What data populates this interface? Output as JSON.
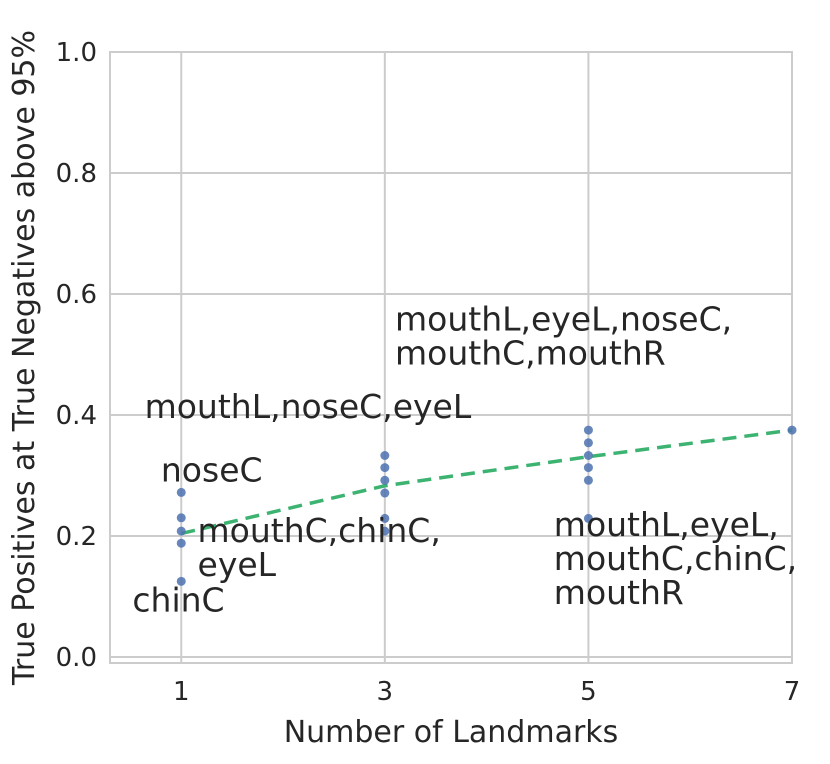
{
  "chart_data": {
    "type": "scatter",
    "xlabel": "Number of Landmarks",
    "ylabel": "True Positives at True Negatives above 95%",
    "xlim": [
      0.3,
      7.0
    ],
    "ylim": [
      -0.01,
      1.0
    ],
    "xticks": [
      1,
      3,
      5,
      7
    ],
    "xtick_labels": [
      "1",
      "3",
      "5",
      "7"
    ],
    "yticks": [
      0.0,
      0.2,
      0.4,
      0.6,
      0.8,
      1.0
    ],
    "ytick_labels": [
      "0.0",
      "0.2",
      "0.4",
      "0.6",
      "0.8",
      "1.0"
    ],
    "grid": true,
    "colors": {
      "points": "#4c72b0",
      "trend": "#3cb371",
      "grid": "#cccccc",
      "text": "#262626"
    },
    "points": [
      {
        "x": 1,
        "y": 0.272
      },
      {
        "x": 1,
        "y": 0.23
      },
      {
        "x": 1,
        "y": 0.208
      },
      {
        "x": 1,
        "y": 0.188
      },
      {
        "x": 1,
        "y": 0.125
      },
      {
        "x": 3,
        "y": 0.333
      },
      {
        "x": 3,
        "y": 0.313
      },
      {
        "x": 3,
        "y": 0.292
      },
      {
        "x": 3,
        "y": 0.271
      },
      {
        "x": 3,
        "y": 0.229
      },
      {
        "x": 3,
        "y": 0.208
      },
      {
        "x": 5,
        "y": 0.375
      },
      {
        "x": 5,
        "y": 0.354
      },
      {
        "x": 5,
        "y": 0.333
      },
      {
        "x": 5,
        "y": 0.313
      },
      {
        "x": 5,
        "y": 0.292
      },
      {
        "x": 5,
        "y": 0.229
      },
      {
        "x": 7,
        "y": 0.375
      }
    ],
    "trend_line": {
      "style": "dashed",
      "points": [
        {
          "x": 1,
          "y": 0.204
        },
        {
          "x": 3,
          "y": 0.283
        },
        {
          "x": 5,
          "y": 0.331
        },
        {
          "x": 7,
          "y": 0.375
        }
      ]
    },
    "annotations": [
      {
        "lines": [
          "mouthL,eyeL,noseC,",
          "mouthC,mouthR"
        ],
        "x": 3.1,
        "y": 0.54
      },
      {
        "lines": [
          "mouthL,noseC,eyeL"
        ],
        "x": 0.64,
        "y": 0.395
      },
      {
        "lines": [
          "noseC"
        ],
        "x": 0.8,
        "y": 0.29
      },
      {
        "lines": [
          "mouthC,chinC,",
          "eyeL"
        ],
        "x": 1.16,
        "y": 0.19
      },
      {
        "lines": [
          "chinC"
        ],
        "x": 0.52,
        "y": 0.075
      },
      {
        "lines": [
          "mouthL,eyeL,",
          "mouthC,chinC,",
          "mouthR"
        ],
        "x": 4.66,
        "y": 0.2
      }
    ]
  }
}
